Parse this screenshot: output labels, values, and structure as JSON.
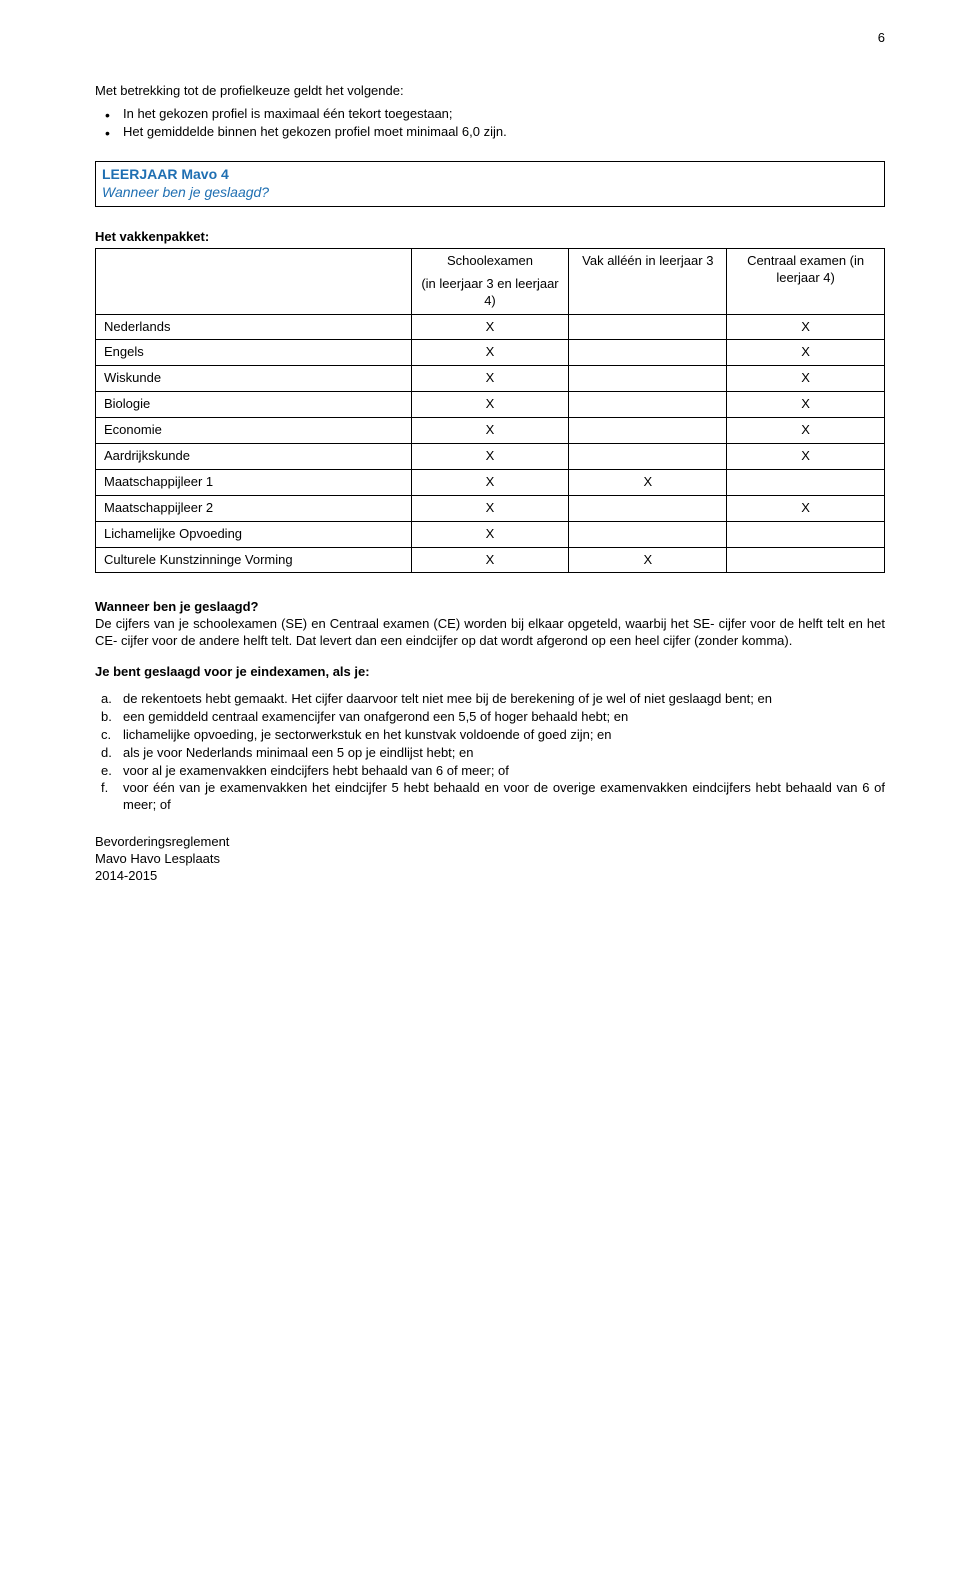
{
  "pageNumber": "6",
  "intro": {
    "lead": "Met betrekking tot de profielkeuze geldt het volgende:",
    "bullet1": "In het gekozen profiel is maximaal één tekort toegestaan;",
    "bullet2": "Het gemiddelde binnen het gekozen profiel moet minimaal 6,0 zijn."
  },
  "box": {
    "title": "LEERJAAR Mavo 4",
    "subtitle": "Wanneer ben je geslaagd?"
  },
  "vakkenpakketHeading": "Het vakkenpakket:",
  "table": {
    "header": {
      "col2a": "Schoolexamen",
      "col2b": "(in leerjaar 3 en leerjaar 4)",
      "col3a": "Vak alléén in leerjaar 3",
      "col4a": "Centraal examen (in leerjaar 4)"
    },
    "rows": [
      {
        "subject": "Nederlands",
        "se": "X",
        "only3": "",
        "ce": "X"
      },
      {
        "subject": "Engels",
        "se": "X",
        "only3": "",
        "ce": "X"
      },
      {
        "subject": "Wiskunde",
        "se": "X",
        "only3": "",
        "ce": "X"
      },
      {
        "subject": "Biologie",
        "se": "X",
        "only3": "",
        "ce": "X"
      },
      {
        "subject": "Economie",
        "se": "X",
        "only3": "",
        "ce": "X"
      },
      {
        "subject": "Aardrijkskunde",
        "se": "X",
        "only3": "",
        "ce": "X"
      },
      {
        "subject": "Maatschappijleer 1",
        "se": "X",
        "only3": "X",
        "ce": ""
      },
      {
        "subject": "Maatschappijleer 2",
        "se": "X",
        "only3": "",
        "ce": "X"
      },
      {
        "subject": "Lichamelijke Opvoeding",
        "se": "X",
        "only3": "",
        "ce": ""
      },
      {
        "subject": "Culturele Kunstzinninge Vorming",
        "se": "X",
        "only3": "X",
        "ce": ""
      }
    ]
  },
  "geslaagd": {
    "heading": "Wanneer ben je geslaagd?",
    "body": "De cijfers van je schoolexamen (SE) en Centraal examen (CE) worden bij elkaar opgeteld, waarbij het SE- cijfer voor de helft telt en het CE- cijfer voor de andere helft telt. Dat levert dan een eindcijfer op dat wordt afgerond op een heel cijfer (zonder komma)."
  },
  "eindexamen": {
    "heading": "Je bent geslaagd voor je eindexamen, als je:",
    "items": [
      {
        "m": "a.",
        "t": "de rekentoets hebt gemaakt. Het cijfer daarvoor telt niet mee bij de berekening of je wel of niet geslaagd bent; en"
      },
      {
        "m": "b.",
        "t": "een gemiddeld centraal examencijfer van onafgerond een 5,5 of hoger behaald hebt; en"
      },
      {
        "m": "c.",
        "t": "lichamelijke opvoeding, je sectorwerkstuk en het kunstvak voldoende of goed zijn; en"
      },
      {
        "m": "d.",
        "t": "als je voor Nederlands minimaal een 5 op je eindlijst hebt; en"
      },
      {
        "m": "e.",
        "t": "voor al je examenvakken eindcijfers hebt behaald van 6 of meer; of"
      },
      {
        "m": "f.",
        "t": "voor één van je examenvakken het eindcijfer 5 hebt behaald en voor de overige examenvakken eindcijfers hebt behaald van 6 of meer; of"
      }
    ]
  },
  "footer": {
    "line1": "Bevorderingsreglement",
    "line2": "Mavo Havo Lesplaats",
    "line3": "2014-2015"
  },
  "colors": {
    "accent": "#1f6fb2",
    "text": "#000000",
    "bg": "#ffffff",
    "border": "#000000"
  }
}
